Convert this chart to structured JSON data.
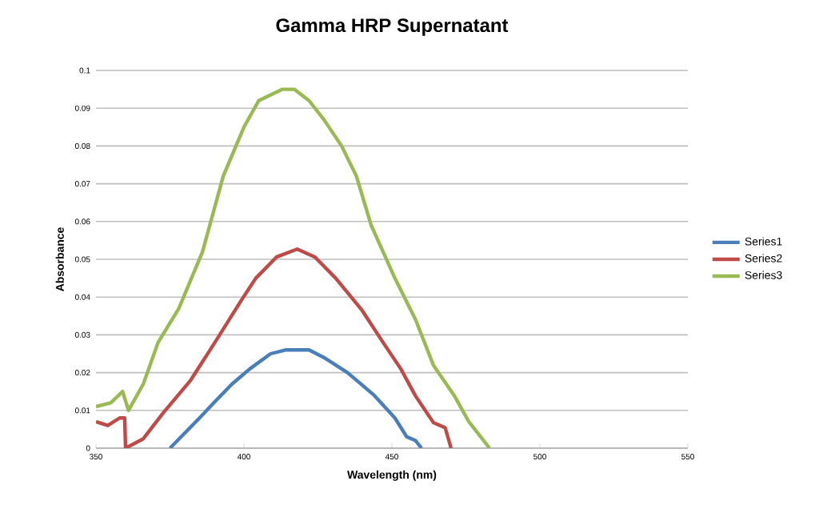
{
  "chart_data": {
    "type": "line",
    "title": "Gamma HRP Supernatant",
    "xlabel": "Wavelength (nm)",
    "ylabel": "Absorbance",
    "xlim": [
      350,
      550
    ],
    "xticks": [
      350,
      400,
      450,
      500,
      550
    ],
    "ylim": [
      0,
      0.1
    ],
    "yticks": [
      0,
      0.01,
      0.02,
      0.03,
      0.04,
      0.05,
      0.06,
      0.07,
      0.08,
      0.09,
      0.1
    ],
    "grid": "y",
    "legend": "right",
    "marker": "none",
    "line_style": "solid",
    "series": [
      {
        "name": "Series1",
        "color": "#4a7ebb",
        "x": [
          375,
          380,
          385,
          391,
          396,
          402,
          409,
          414,
          418,
          422,
          427,
          435,
          444,
          451,
          455,
          458,
          460
        ],
        "values": [
          0,
          0.004,
          0.008,
          0.013,
          0.017,
          0.021,
          0.025,
          0.026,
          0.026,
          0.026,
          0.024,
          0.02,
          0.014,
          0.008,
          0.003,
          0.002,
          0
        ]
      },
      {
        "name": "Series2",
        "color": "#be4b48",
        "x": [
          350,
          354,
          358,
          359.7,
          360,
          366,
          373,
          382,
          391,
          399,
          404,
          411,
          418,
          424,
          431,
          440,
          447,
          453,
          458,
          464,
          468,
          470
        ],
        "values": [
          0.007,
          0.006,
          0.008,
          0.008,
          0,
          0.0025,
          0.0096,
          0.018,
          0.029,
          0.039,
          0.045,
          0.0506,
          0.0527,
          0.0506,
          0.045,
          0.0364,
          0.028,
          0.021,
          0.0138,
          0.0068,
          0.0054,
          0
        ]
      },
      {
        "name": "Series3",
        "color": "#98b954",
        "x": [
          350,
          355,
          359,
          361,
          366,
          371,
          378,
          386,
          393,
          400,
          405,
          413,
          417,
          422,
          427,
          433,
          438,
          443,
          451,
          458,
          464,
          471,
          476,
          483
        ],
        "values": [
          0.011,
          0.012,
          0.015,
          0.01,
          0.017,
          0.028,
          0.037,
          0.052,
          0.072,
          0.085,
          0.092,
          0.095,
          0.095,
          0.092,
          0.087,
          0.08,
          0.072,
          0.059,
          0.045,
          0.034,
          0.022,
          0.014,
          0.007,
          0
        ]
      }
    ]
  }
}
